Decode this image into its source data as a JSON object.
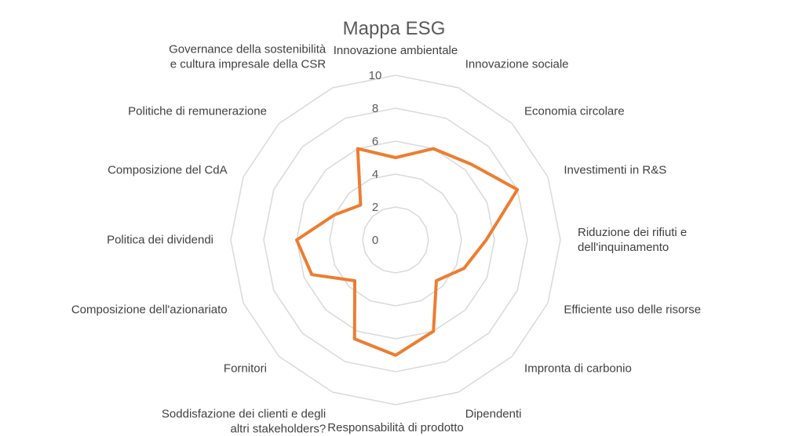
{
  "chart_data": {
    "type": "radar",
    "title": "Mappa ESG",
    "categories": [
      "Innovazione ambientale",
      "Innovazione sociale",
      "Economia circolare",
      "Investimenti in R&S",
      [
        "Riduzione dei rifiuti e",
        "dell'inquinamento"
      ],
      "Efficiente uso delle risorse",
      "Impronta di carbonio",
      "Dipendenti",
      "Responsabilità di prodotto",
      [
        "Soddisfazione dei clienti e degli",
        "altri stakeholders?"
      ],
      "Fornitori",
      "Composizione dell'azionariato",
      "Politica dei dividendi",
      "Composizione del CdA",
      "Politiche di remunerazione",
      [
        "Governance della sostenibilità",
        "e cultura impresale della CSR"
      ]
    ],
    "series": [
      {
        "values": [
          5,
          6,
          6.5,
          8,
          5.5,
          4.5,
          3.5,
          6,
          7,
          6.5,
          3.5,
          5.5,
          6,
          4,
          3,
          6
        ],
        "color": "#ED7D31"
      }
    ],
    "rlim": [
      0,
      10
    ],
    "ticks": [
      "0",
      "2",
      "4",
      "6",
      "8",
      "10"
    ],
    "grid": true,
    "gridColor": "#D9D9D9",
    "legend": false
  }
}
